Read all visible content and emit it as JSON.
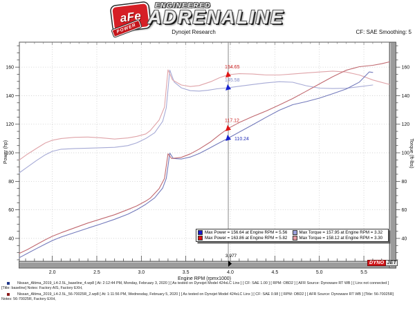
{
  "header": {
    "brand": {
      "badge_main": "aFe",
      "badge_sub": "POWER",
      "tagline": "ENGINEERED",
      "wordmark": "ADRENALINE"
    },
    "subtitle_center": "Dynojet Research",
    "subtitle_right": "CF: SAE Smoothing: 5"
  },
  "chart_data": {
    "type": "line",
    "xlabel": "Engine RPM (rpmx1000)",
    "ylabel_left": "Power (hp)",
    "ylabel_right": "Torque (ft-lbs)",
    "x_ticks": [
      "2.0",
      "2.5",
      "3.0",
      "3.5",
      "4.0",
      "4.5",
      "5.0",
      "5.5"
    ],
    "y_ticks": [
      "40",
      "60",
      "80",
      "100",
      "120",
      "140",
      "160"
    ],
    "x_range": [
      1.63,
      5.787
    ],
    "y_range": [
      24,
      177.5
    ],
    "grid": "dotted",
    "cursor": {
      "x": 3.977,
      "label": "3,977"
    },
    "series": [
      {
        "name": "torque-baseline",
        "axis": "right",
        "color": "#a5a9d5",
        "points": [
          [
            1.63,
            86
          ],
          [
            1.72,
            90
          ],
          [
            1.82,
            94.5
          ],
          [
            1.92,
            98.5
          ],
          [
            2.0,
            101
          ],
          [
            2.1,
            102.5
          ],
          [
            2.25,
            103
          ],
          [
            2.4,
            103.2
          ],
          [
            2.55,
            103.5
          ],
          [
            2.7,
            103.8
          ],
          [
            2.85,
            105
          ],
          [
            2.95,
            107
          ],
          [
            3.05,
            110
          ],
          [
            3.15,
            114
          ],
          [
            3.24,
            122
          ],
          [
            3.28,
            131.5
          ],
          [
            3.32,
            157.95
          ],
          [
            3.37,
            149.5
          ],
          [
            3.45,
            145.5
          ],
          [
            3.55,
            143.5
          ],
          [
            3.65,
            143.2
          ],
          [
            3.75,
            143.8
          ],
          [
            3.85,
            144.8
          ],
          [
            3.977,
            145.58
          ],
          [
            4.1,
            146.6
          ],
          [
            4.25,
            147.8
          ],
          [
            4.4,
            149
          ],
          [
            4.55,
            149.8
          ],
          [
            4.7,
            149.4
          ],
          [
            4.85,
            147
          ],
          [
            5.0,
            145.3
          ],
          [
            5.15,
            145
          ],
          [
            5.3,
            145.2
          ],
          [
            5.45,
            146.3
          ],
          [
            5.6,
            147.5
          ]
        ]
      },
      {
        "name": "torque-56-70025R",
        "axis": "right",
        "color": "#dfa3a8",
        "points": [
          [
            1.63,
            95
          ],
          [
            1.72,
            99
          ],
          [
            1.82,
            103
          ],
          [
            1.92,
            106.8
          ],
          [
            2.0,
            108.8
          ],
          [
            2.1,
            110
          ],
          [
            2.25,
            110.8
          ],
          [
            2.4,
            111
          ],
          [
            2.55,
            110.5
          ],
          [
            2.7,
            109.6
          ],
          [
            2.85,
            110.4
          ],
          [
            2.95,
            111.5
          ],
          [
            3.05,
            113.2
          ],
          [
            3.1,
            115.5
          ],
          [
            3.2,
            123
          ],
          [
            3.26,
            132
          ],
          [
            3.3,
            158.12
          ],
          [
            3.35,
            151
          ],
          [
            3.45,
            147.5
          ],
          [
            3.55,
            146.4
          ],
          [
            3.65,
            147.1
          ],
          [
            3.78,
            149.8
          ],
          [
            3.88,
            152.6
          ],
          [
            3.977,
            154.65
          ],
          [
            4.1,
            155.4
          ],
          [
            4.25,
            155.2
          ],
          [
            4.4,
            154.5
          ],
          [
            4.55,
            154.5
          ],
          [
            4.7,
            155.2
          ],
          [
            4.85,
            155.9
          ],
          [
            5.0,
            156.6
          ],
          [
            5.15,
            157.2
          ],
          [
            5.3,
            156.6
          ],
          [
            5.45,
            154.5
          ],
          [
            5.6,
            151
          ],
          [
            5.7,
            149.3
          ],
          [
            5.787,
            147.9
          ]
        ]
      },
      {
        "name": "power-baseline",
        "axis": "left",
        "color": "#7279bb",
        "points": [
          [
            1.63,
            26.5
          ],
          [
            1.72,
            29.5
          ],
          [
            1.82,
            32.8
          ],
          [
            1.92,
            36
          ],
          [
            2.0,
            38.5
          ],
          [
            2.1,
            41
          ],
          [
            2.25,
            44.1
          ],
          [
            2.4,
            47.2
          ],
          [
            2.55,
            50.2
          ],
          [
            2.7,
            53.4
          ],
          [
            2.85,
            57
          ],
          [
            2.95,
            60.1
          ],
          [
            3.05,
            63.9
          ],
          [
            3.15,
            68.4
          ],
          [
            3.24,
            75.3
          ],
          [
            3.28,
            82
          ],
          [
            3.32,
            99.8
          ],
          [
            3.36,
            96
          ],
          [
            3.45,
            95.6
          ],
          [
            3.55,
            97
          ],
          [
            3.65,
            99.5
          ],
          [
            3.75,
            102.7
          ],
          [
            3.85,
            106.1
          ],
          [
            3.977,
            110.24
          ],
          [
            4.1,
            114.5
          ],
          [
            4.25,
            119.6
          ],
          [
            4.4,
            124.8
          ],
          [
            4.55,
            129.8
          ],
          [
            4.7,
            133.7
          ],
          [
            4.85,
            135.8
          ],
          [
            5.0,
            138.3
          ],
          [
            5.15,
            141.4
          ],
          [
            5.3,
            144.6
          ],
          [
            5.45,
            149.5
          ],
          [
            5.56,
            156.64
          ],
          [
            5.6,
            156.3
          ]
        ]
      },
      {
        "name": "power-56-70025R",
        "axis": "left",
        "color": "#c0686f",
        "points": [
          [
            1.63,
            29.5
          ],
          [
            1.72,
            32.2
          ],
          [
            1.82,
            35.6
          ],
          [
            1.92,
            39
          ],
          [
            2.0,
            41.5
          ],
          [
            2.1,
            44
          ],
          [
            2.25,
            47.4
          ],
          [
            2.4,
            50.8
          ],
          [
            2.55,
            53.7
          ],
          [
            2.7,
            56.6
          ],
          [
            2.85,
            60.2
          ],
          [
            2.95,
            62.8
          ],
          [
            3.05,
            66.2
          ],
          [
            3.1,
            68.2
          ],
          [
            3.2,
            74.9
          ],
          [
            3.26,
            82
          ],
          [
            3.3,
            99.3
          ],
          [
            3.34,
            96
          ],
          [
            3.45,
            96.8
          ],
          [
            3.55,
            99.2
          ],
          [
            3.65,
            102.6
          ],
          [
            3.78,
            107.7
          ],
          [
            3.88,
            112.7
          ],
          [
            3.977,
            117.12
          ],
          [
            4.1,
            121.2
          ],
          [
            4.25,
            125.4
          ],
          [
            4.4,
            129.2
          ],
          [
            4.55,
            133.5
          ],
          [
            4.7,
            138
          ],
          [
            4.85,
            143
          ],
          [
            5.0,
            148.2
          ],
          [
            5.15,
            153.3
          ],
          [
            5.3,
            157.8
          ],
          [
            5.45,
            160.3
          ],
          [
            5.6,
            161.3
          ],
          [
            5.7,
            162.4
          ],
          [
            5.787,
            163.7
          ]
        ]
      }
    ],
    "annotations": [
      {
        "label": "154.65",
        "value": 154.65,
        "rpm": 3.977,
        "text_color": "#cc2020",
        "marker_color": "#e01515",
        "placement": "above"
      },
      {
        "label": "145.58",
        "value": 145.58,
        "rpm": 3.977,
        "text_color": "#8089c9",
        "marker_color": "#1520d0",
        "placement": "above"
      },
      {
        "label": "117.12",
        "value": 117.12,
        "rpm": 3.977,
        "text_color": "#cc2020",
        "marker_color": "#e01515",
        "placement": "above"
      },
      {
        "label": "110.24",
        "value": 110.24,
        "rpm": 3.977,
        "text_color": "#2530b8",
        "marker_color": "#1520d0",
        "placement": "right"
      }
    ],
    "legend": {
      "position": "bottom-right",
      "items": [
        {
          "swatch": "#1a1acc",
          "text": "Max Power = 156.64 at Engine RPM = 5.56"
        },
        {
          "swatch": "#9aa0dc",
          "text": "Max Torque = 157.95 at Engine RPM = 3.32"
        },
        {
          "swatch": "#dd1515",
          "text": "Max Power = 163.86 at Engine RPM = 5.82"
        },
        {
          "swatch": "#e49aa2",
          "text": "Max Torque = 158.12 at Engine RPM = 3.30"
        }
      ]
    },
    "watermark": {
      "part1": "DYNO",
      "part2": "JET"
    }
  },
  "footer": {
    "runs": [
      {
        "bullet_color": "#223a8c",
        "line1": "Nissan_Altima_2019_L4-2.5L_baseline_4.wp8 [ At: 2:12:44 PM, Monday, February 3, 2020 ] [ As tested on Dynojet Model 424xLC Linx ] [ CF: SAE 1.00 ] [ RPM: OBD2 ] [ AFR Source: Dynoware RT WB ] [ Linx not connected ]",
        "line2": "[Title: baseline]  Notes: Factory AIS, Factory EXH,"
      },
      {
        "bullet_color": "#8c1a1a",
        "line1": "Nissan_Altima_2019_L4-2.5L_56-70025R_2.wp8 [ At: 1:11:56 PM, Wednesday, February 5, 2020 ] [ As tested on Dynojet Model 424xLC Linx ] [ CF: SAE 0.98 ] [ RPM: OBD2 ] [ AFR Source: Dynoware RT WB ] [Title: 56-70025R]",
        "line2": "Notes: 56-70025R, Factory EXH,"
      }
    ]
  }
}
